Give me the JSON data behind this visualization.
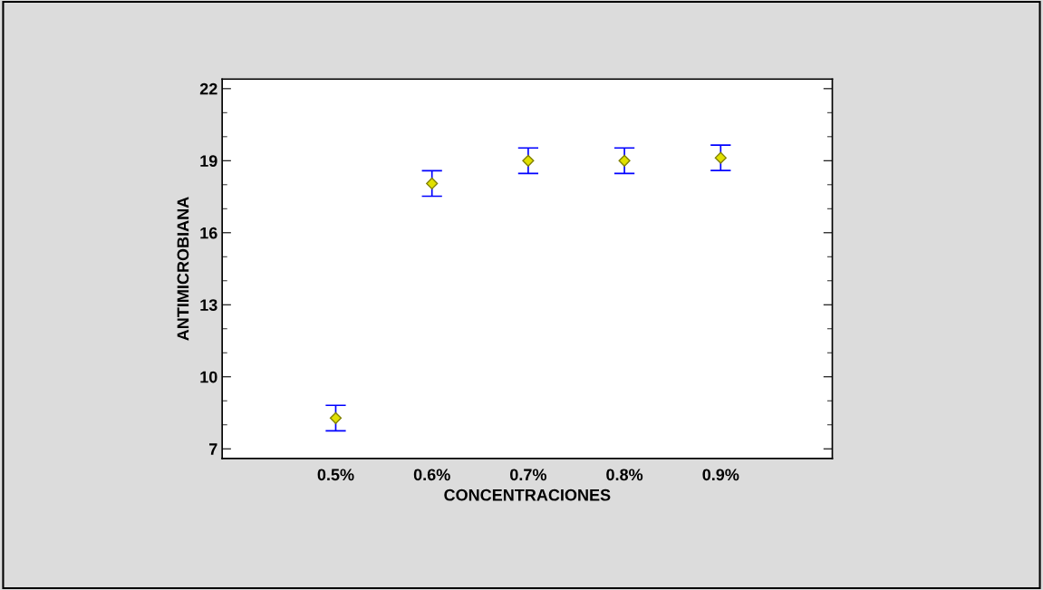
{
  "chart_data": {
    "type": "scatter",
    "xlabel": "CONCENTRACIONES",
    "ylabel": "ANTIMICROBIANA",
    "categories": [
      "0.5%",
      "0.6%",
      "0.7%",
      "0.8%",
      "0.9%"
    ],
    "series": [
      {
        "color": "#808000",
        "values": [
          8.28,
          18.05,
          19.0,
          19.0,
          19.12
        ],
        "errors": [
          0.53,
          0.53,
          0.53,
          0.53,
          0.53
        ]
      }
    ],
    "ylim": [
      6.6,
      22.4
    ],
    "yticks": [
      7,
      10,
      13,
      16,
      19,
      22
    ],
    "marker": "diamond",
    "grid": false,
    "legend": false
  }
}
